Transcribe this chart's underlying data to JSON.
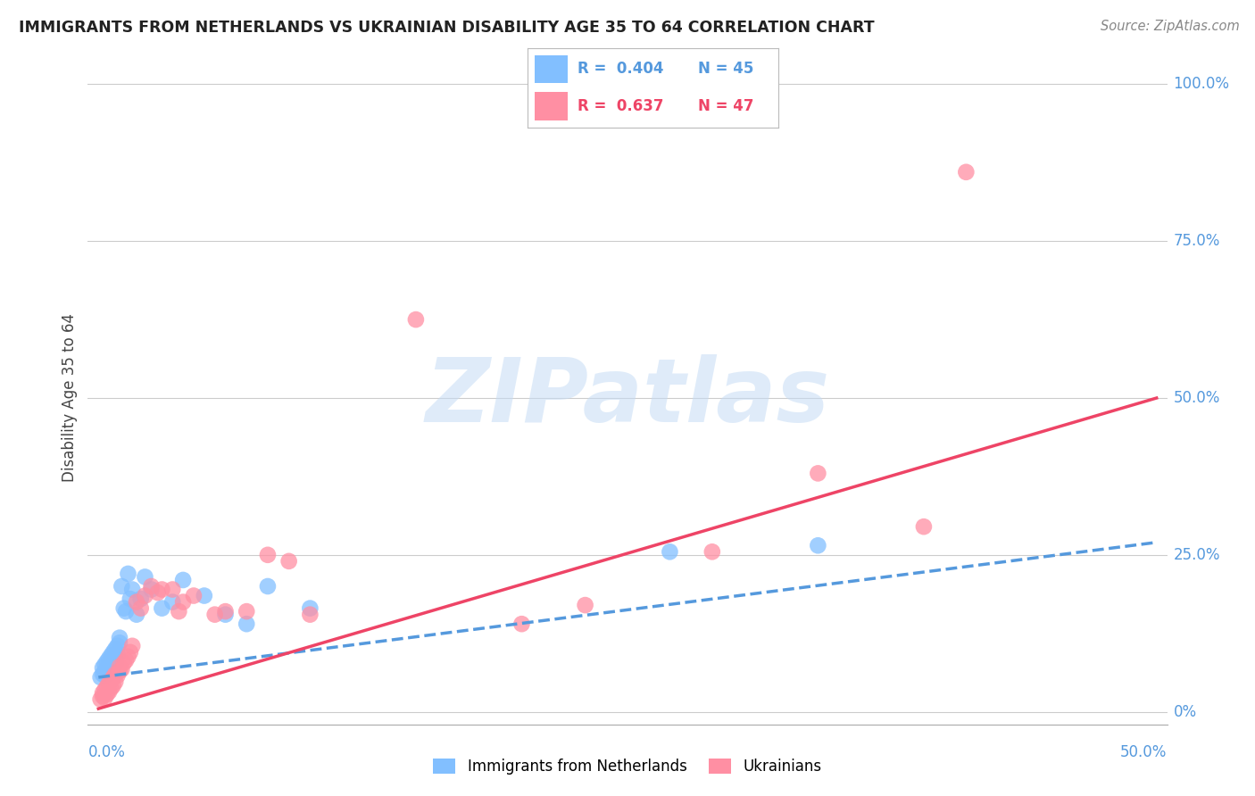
{
  "title": "IMMIGRANTS FROM NETHERLANDS VS UKRAINIAN DISABILITY AGE 35 TO 64 CORRELATION CHART",
  "source": "Source: ZipAtlas.com",
  "ylabel": "Disability Age 35 to 64",
  "xlim": [
    0.0,
    0.5
  ],
  "ylim": [
    0.0,
    1.0
  ],
  "yticks": [
    0.0,
    0.25,
    0.5,
    0.75,
    1.0
  ],
  "ytick_labels": [
    "0%",
    "25.0%",
    "50.0%",
    "75.0%",
    "100.0%"
  ],
  "legend_blue_R": "0.404",
  "legend_blue_N": "45",
  "legend_pink_R": "0.637",
  "legend_pink_N": "47",
  "blue_color": "#82BFFF",
  "pink_color": "#FF8FA3",
  "blue_line_color": "#5599DD",
  "pink_line_color": "#EE4466",
  "watermark_text": "ZIPatlas",
  "blue_scatter_x": [
    0.001,
    0.002,
    0.002,
    0.003,
    0.003,
    0.003,
    0.004,
    0.004,
    0.004,
    0.005,
    0.005,
    0.005,
    0.006,
    0.006,
    0.006,
    0.007,
    0.007,
    0.007,
    0.008,
    0.008,
    0.008,
    0.009,
    0.009,
    0.01,
    0.01,
    0.011,
    0.012,
    0.013,
    0.014,
    0.015,
    0.016,
    0.018,
    0.02,
    0.022,
    0.025,
    0.03,
    0.035,
    0.04,
    0.05,
    0.06,
    0.07,
    0.08,
    0.1,
    0.27,
    0.34
  ],
  "blue_scatter_y": [
    0.055,
    0.06,
    0.07,
    0.058,
    0.065,
    0.075,
    0.06,
    0.068,
    0.08,
    0.062,
    0.07,
    0.085,
    0.072,
    0.08,
    0.09,
    0.075,
    0.082,
    0.095,
    0.078,
    0.088,
    0.1,
    0.092,
    0.105,
    0.11,
    0.118,
    0.2,
    0.165,
    0.16,
    0.22,
    0.18,
    0.195,
    0.155,
    0.18,
    0.215,
    0.195,
    0.165,
    0.175,
    0.21,
    0.185,
    0.155,
    0.14,
    0.2,
    0.165,
    0.255,
    0.265
  ],
  "pink_scatter_x": [
    0.001,
    0.002,
    0.002,
    0.003,
    0.003,
    0.004,
    0.004,
    0.005,
    0.005,
    0.006,
    0.006,
    0.007,
    0.007,
    0.008,
    0.008,
    0.009,
    0.01,
    0.01,
    0.011,
    0.012,
    0.013,
    0.014,
    0.015,
    0.016,
    0.018,
    0.02,
    0.022,
    0.025,
    0.028,
    0.03,
    0.035,
    0.038,
    0.04,
    0.045,
    0.055,
    0.06,
    0.07,
    0.08,
    0.09,
    0.1,
    0.15,
    0.2,
    0.23,
    0.29,
    0.34,
    0.39,
    0.41
  ],
  "pink_scatter_y": [
    0.02,
    0.025,
    0.03,
    0.022,
    0.035,
    0.028,
    0.04,
    0.032,
    0.045,
    0.038,
    0.05,
    0.042,
    0.055,
    0.048,
    0.06,
    0.058,
    0.065,
    0.072,
    0.068,
    0.078,
    0.082,
    0.088,
    0.095,
    0.105,
    0.175,
    0.165,
    0.185,
    0.2,
    0.19,
    0.195,
    0.195,
    0.16,
    0.175,
    0.185,
    0.155,
    0.16,
    0.16,
    0.25,
    0.24,
    0.155,
    0.625,
    0.14,
    0.17,
    0.255,
    0.38,
    0.295,
    0.86
  ],
  "trend_blue_x_start": 0.0,
  "trend_blue_x_end": 0.5,
  "trend_blue_y_start": 0.055,
  "trend_blue_y_end": 0.27,
  "trend_pink_x_start": 0.0,
  "trend_pink_x_end": 0.5,
  "trend_pink_y_start": 0.005,
  "trend_pink_y_end": 0.5
}
